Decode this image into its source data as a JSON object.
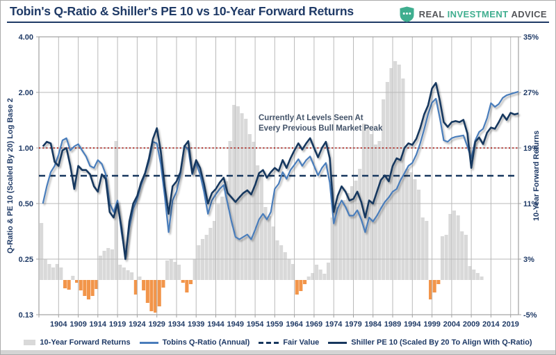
{
  "header": {
    "title": "Tobin's Q-Ratio & Shiller's PE 10 vs 10-Year Forward Returns",
    "logo": {
      "word1": "REAL",
      "word2": "INVESTMENT",
      "word3": "ADVICE",
      "shield_color": "#3fae8f"
    }
  },
  "annotation": {
    "line1": "Currently At Levels Seen At",
    "line2": "Every Previous Bull Market Peak"
  },
  "axes": {
    "left_label": "Q-Ratio & PE 10 (Scaled By 20) Log Base 2",
    "right_label": "10-Year Forward Returns",
    "left_ticks": [
      "4.00",
      "2.00",
      "1.00",
      "0.50",
      "0.25",
      "0.13"
    ],
    "left_tick_values": [
      4.0,
      2.0,
      1.0,
      0.5,
      0.25,
      0.125
    ],
    "right_ticks": [
      "35%",
      "27%",
      "19%",
      "11%",
      "3%",
      "-5%"
    ],
    "right_tick_values": [
      35,
      27,
      19,
      11,
      3,
      -5
    ],
    "x_ticks": [
      "1904",
      "1909",
      "1914",
      "1919",
      "1924",
      "1929",
      "1934",
      "1939",
      "1944",
      "1949",
      "1954",
      "1959",
      "1964",
      "1969",
      "1974",
      "1979",
      "1984",
      "1989",
      "1994",
      "1999",
      "2004",
      "2009",
      "2014",
      "2019"
    ]
  },
  "legend": {
    "items": [
      {
        "label": "10-Year Forward Returns",
        "swatch": "bar"
      },
      {
        "label": "Tobins Q-Ratio (Annual)",
        "swatch": "line-blue"
      },
      {
        "label": "Fair Value",
        "swatch": "dash"
      },
      {
        "label": "Shiller PE 10 (Scaled By 20 To Align With Q-Ratio)",
        "swatch": "line-navy"
      }
    ]
  },
  "colors": {
    "navy_text": "#1f3a66",
    "line_dark": "#17375e",
    "line_blue": "#4a7dbb",
    "bar_gray": "#d9d9d9",
    "bar_orange": "#f2954a",
    "grid": "#b9b9b9",
    "plot_border": "#a0a0a0",
    "fair_value_dash": "#17375e",
    "peak_dotted_red": "#b43a36",
    "annotation_text": "#44546a"
  },
  "chart_data": {
    "type": "combo",
    "x_range_years": [
      1899,
      2021
    ],
    "ylim_left_log2": [
      0.125,
      4.0
    ],
    "ylim_right_pct": [
      -5,
      35
    ],
    "grid": "on",
    "legend_position": "bottom",
    "title": "Tobin's Q-Ratio & Shiller's PE 10 vs 10-Year Forward Returns",
    "series": [
      {
        "name": "10-Year Forward Returns",
        "type": "bar",
        "axis": "right-percent",
        "start_year": 1900,
        "values": [
          8.2,
          3.0,
          2.3,
          1.8,
          2.3,
          1.8,
          -1.2,
          -1.4,
          0.6,
          -0.4,
          -1.5,
          -2.3,
          -2.8,
          -2.3,
          -1.3,
          3.5,
          4.2,
          4.6,
          4.4,
          20.0,
          2.2,
          1.8,
          1.4,
          1.1,
          -2.1,
          0.5,
          -1.5,
          -3.3,
          -4.5,
          -4.7,
          -3.8,
          -1.1,
          2.8,
          3.0,
          2.6,
          2.2,
          -0.4,
          -1.8,
          -0.6,
          3.0,
          5.0,
          5.9,
          6.5,
          7.5,
          8.5,
          10.9,
          12.0,
          14.2,
          20.0,
          25.2,
          25.0,
          24.0,
          23.2,
          21.0,
          19.9,
          16.5,
          15.0,
          10.5,
          9.2,
          7.7,
          5.7,
          5.0,
          4.0,
          3.0,
          2.3,
          -2.1,
          -1.6,
          -0.6,
          0.5,
          1.0,
          2.2,
          1.5,
          0.9,
          2.5,
          9.0,
          10.5,
          11.0,
          11.5,
          12.5,
          13.5,
          14.3,
          16.0,
          22.5,
          22.0,
          21.0,
          19.5,
          20.0,
          26.0,
          28.5,
          30.5,
          31.5,
          31.0,
          29.0,
          16.0,
          15.5,
          14.5,
          13.0,
          9.0,
          8.5,
          -2.8,
          -1.8,
          -0.6,
          6.3,
          6.5,
          9.5,
          10.0,
          9.3,
          7.0,
          6.5,
          2.0,
          1.5,
          1.0,
          0.5
        ]
      },
      {
        "name": "Tobins Q-Ratio (Annual)",
        "type": "line",
        "axis": "left-log2",
        "start_year": 1900,
        "values": [
          0.5,
          0.62,
          0.74,
          0.8,
          0.92,
          1.1,
          1.13,
          0.97,
          1.02,
          1.05,
          0.97,
          0.9,
          0.8,
          0.78,
          0.86,
          0.82,
          0.72,
          0.5,
          0.45,
          0.52,
          0.35,
          0.26,
          0.37,
          0.47,
          0.53,
          0.63,
          0.72,
          0.85,
          1.08,
          1.06,
          0.82,
          0.55,
          0.35,
          0.52,
          0.58,
          0.72,
          1.03,
          0.98,
          0.72,
          0.83,
          0.72,
          0.58,
          0.44,
          0.52,
          0.56,
          0.6,
          0.63,
          0.5,
          0.4,
          0.33,
          0.32,
          0.33,
          0.34,
          0.32,
          0.36,
          0.41,
          0.44,
          0.41,
          0.45,
          0.6,
          0.64,
          0.74,
          0.68,
          0.76,
          0.81,
          0.87,
          0.8,
          0.86,
          0.9,
          0.8,
          0.71,
          0.78,
          0.83,
          0.65,
          0.39,
          0.47,
          0.52,
          0.48,
          0.43,
          0.43,
          0.46,
          0.41,
          0.35,
          0.42,
          0.4,
          0.43,
          0.47,
          0.51,
          0.54,
          0.58,
          0.6,
          0.67,
          0.73,
          0.8,
          0.83,
          0.92,
          1.06,
          1.26,
          1.52,
          1.76,
          1.85,
          1.45,
          1.1,
          1.08,
          1.13,
          1.15,
          1.16,
          1.17,
          1.02,
          0.88,
          1.1,
          1.22,
          1.27,
          1.45,
          1.75,
          1.67,
          1.73,
          1.87,
          1.93,
          1.96,
          1.99,
          2.02
        ]
      },
      {
        "name": "Shiller PE 10 (Scaled By 20 To Align With Q-Ratio)",
        "type": "line",
        "axis": "left-log2",
        "start_year": 1900,
        "values": [
          1.02,
          1.08,
          1.06,
          0.84,
          0.8,
          0.97,
          1.0,
          0.8,
          0.6,
          0.8,
          0.76,
          0.76,
          0.72,
          0.62,
          0.58,
          0.72,
          0.68,
          0.45,
          0.42,
          0.5,
          0.37,
          0.25,
          0.4,
          0.5,
          0.55,
          0.65,
          0.73,
          0.88,
          1.12,
          1.28,
          0.96,
          0.62,
          0.44,
          0.62,
          0.66,
          0.74,
          1.02,
          1.09,
          0.73,
          0.86,
          0.78,
          0.64,
          0.5,
          0.57,
          0.6,
          0.65,
          0.69,
          0.57,
          0.54,
          0.51,
          0.54,
          0.57,
          0.59,
          0.56,
          0.63,
          0.73,
          0.76,
          0.69,
          0.74,
          0.78,
          0.75,
          0.86,
          0.78,
          0.88,
          0.97,
          1.06,
          0.98,
          1.06,
          1.13,
          1.0,
          0.89,
          1.0,
          1.08,
          0.88,
          0.45,
          0.55,
          0.62,
          0.58,
          0.52,
          0.53,
          0.58,
          0.51,
          0.42,
          0.52,
          0.5,
          0.58,
          0.67,
          0.71,
          0.66,
          0.8,
          0.88,
          0.86,
          1.0,
          1.06,
          1.04,
          1.12,
          1.28,
          1.52,
          1.7,
          2.1,
          2.25,
          1.8,
          1.38,
          1.3,
          1.38,
          1.4,
          1.38,
          1.42,
          1.2,
          0.78,
          1.08,
          1.14,
          1.05,
          1.21,
          1.29,
          1.27,
          1.38,
          1.52,
          1.42,
          1.55,
          1.52,
          1.54
        ]
      },
      {
        "name": "Fair Value",
        "type": "hline",
        "axis": "left-log2",
        "value": 0.707,
        "style": "dashed"
      },
      {
        "name": "Bull Market Peak Reference",
        "type": "hline",
        "axis": "left-log2",
        "value": 1.0,
        "style": "dotted-red"
      }
    ]
  }
}
